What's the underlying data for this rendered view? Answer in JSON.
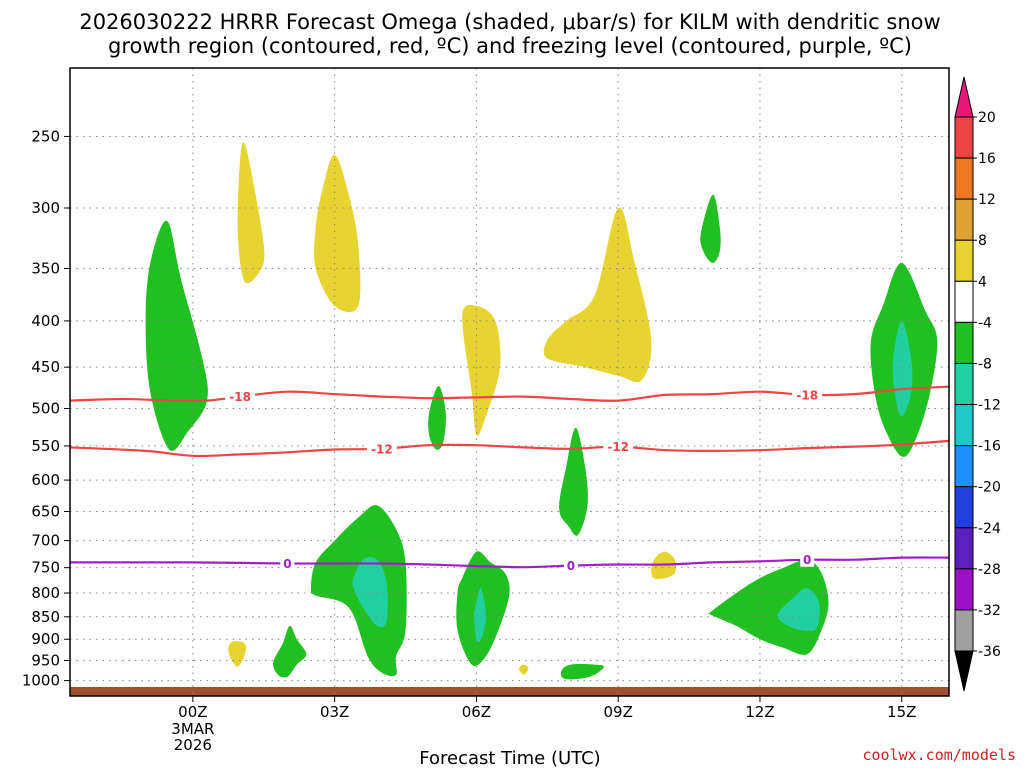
{
  "chart_data": {
    "type": "contour",
    "title_lines": [
      "2026030222 HRRR Forecast Omega (shaded, μbar/s) for KILM with dendritic snow",
      "growth region (contoured, red, ºC) and freezing level (contoured, purple, ºC)"
    ],
    "xlabel": "Forecast Time (UTC)",
    "xlim": [
      -2.6,
      16
    ],
    "ylim": [
      1040,
      210
    ],
    "x_ticks": [
      {
        "x": 0,
        "label": "00Z",
        "sub": [
          "3MAR",
          "2026"
        ]
      },
      {
        "x": 3,
        "label": "03Z",
        "sub": []
      },
      {
        "x": 6,
        "label": "06Z",
        "sub": []
      },
      {
        "x": 9,
        "label": "09Z",
        "sub": []
      },
      {
        "x": 12,
        "label": "12Z",
        "sub": []
      },
      {
        "x": 15,
        "label": "15Z",
        "sub": []
      }
    ],
    "y_ticks": [
      250,
      300,
      350,
      400,
      450,
      500,
      550,
      600,
      650,
      700,
      750,
      800,
      850,
      900,
      950,
      1000
    ],
    "y_tick_labels": [
      "250",
      "300",
      "350",
      "400",
      "450",
      "500",
      "550",
      "600",
      "650",
      "700",
      "750",
      "800",
      "850",
      "900",
      "950",
      "1000"
    ],
    "ground": {
      "color": "#a0522d",
      "label": "terrain"
    },
    "colorbar": {
      "labels": [
        "20",
        "16",
        "12",
        "8",
        "4",
        "-4",
        "-8",
        "-12",
        "-16",
        "-20",
        "-24",
        "-28",
        "-32",
        "-36"
      ],
      "colors": [
        "#ee4444",
        "#ee7722",
        "#e0a232",
        "#e8d430",
        "#ffffff",
        "#20c020",
        "#20d0a0",
        "#20c8c8",
        "#1e90ff",
        "#2040e0",
        "#5a20c0",
        "#9d10c8",
        "#a0a0a0"
      ],
      "top_arrow_color": "#e8187a",
      "bottom_arrow_color": "#000000"
    },
    "omega_regions": [
      {
        "name": "sink-0z-upper",
        "color": "#20c020",
        "pts": [
          [
            -0.5,
            555
          ],
          [
            -0.9,
            480
          ],
          [
            -1.0,
            400
          ],
          [
            -0.9,
            345
          ],
          [
            -0.55,
            310
          ],
          [
            -0.25,
            360
          ],
          [
            0.2,
            440
          ],
          [
            0.3,
            490
          ],
          [
            -0.1,
            530
          ]
        ]
      },
      {
        "name": "rise-1z-upper",
        "color": "#e8d430",
        "pts": [
          [
            1.0,
            265
          ],
          [
            1.1,
            255
          ],
          [
            1.3,
            285
          ],
          [
            1.5,
            330
          ],
          [
            1.45,
            350
          ],
          [
            1.1,
            362
          ],
          [
            0.95,
            320
          ]
        ]
      },
      {
        "name": "rise-3z-upper",
        "color": "#e8d430",
        "pts": [
          [
            2.6,
            315
          ],
          [
            2.75,
            285
          ],
          [
            3.0,
            262
          ],
          [
            3.3,
            290
          ],
          [
            3.5,
            330
          ],
          [
            3.5,
            385
          ],
          [
            3.0,
            385
          ],
          [
            2.6,
            350
          ]
        ]
      },
      {
        "name": "sink-5z-mid",
        "color": "#20c020",
        "pts": [
          [
            5.0,
            535
          ],
          [
            5.0,
            505
          ],
          [
            5.2,
            472
          ],
          [
            5.35,
            505
          ],
          [
            5.3,
            545
          ],
          [
            5.15,
            555
          ]
        ]
      },
      {
        "name": "rise-6z-mid",
        "color": "#e8d430",
        "pts": [
          [
            5.7,
            395
          ],
          [
            6.0,
            385
          ],
          [
            6.4,
            400
          ],
          [
            6.5,
            450
          ],
          [
            6.2,
            510
          ],
          [
            6.0,
            535
          ],
          [
            5.9,
            480
          ]
        ]
      },
      {
        "name": "rise-9z-mid",
        "color": "#e8d430",
        "pts": [
          [
            7.5,
            420
          ],
          [
            7.9,
            400
          ],
          [
            8.5,
            375
          ],
          [
            9.0,
            300
          ],
          [
            9.35,
            345
          ],
          [
            9.7,
            420
          ],
          [
            9.5,
            465
          ],
          [
            9.0,
            460
          ],
          [
            8.3,
            450
          ],
          [
            7.5,
            440
          ]
        ]
      },
      {
        "name": "sink-11z-upper",
        "color": "#20c020",
        "pts": [
          [
            10.75,
            320
          ],
          [
            11.0,
            290
          ],
          [
            11.15,
            315
          ],
          [
            11.15,
            335
          ],
          [
            11.0,
            345
          ],
          [
            10.8,
            335
          ]
        ]
      },
      {
        "name": "sink-15z-upper",
        "color": "#20c020",
        "pts": [
          [
            14.35,
            420
          ],
          [
            14.6,
            385
          ],
          [
            15.0,
            345
          ],
          [
            15.5,
            390
          ],
          [
            15.75,
            420
          ],
          [
            15.6,
            480
          ],
          [
            15.3,
            540
          ],
          [
            15.0,
            565
          ],
          [
            14.6,
            520
          ],
          [
            14.4,
            470
          ]
        ]
      },
      {
        "name": "sink-15z-core",
        "color": "#20d0a0",
        "pts": [
          [
            14.82,
            440
          ],
          [
            15.0,
            400
          ],
          [
            15.2,
            440
          ],
          [
            15.2,
            480
          ],
          [
            15.0,
            510
          ],
          [
            14.85,
            480
          ]
        ]
      },
      {
        "name": "sink-8z-mid",
        "color": "#20c020",
        "pts": [
          [
            7.75,
            645
          ],
          [
            7.9,
            580
          ],
          [
            8.1,
            525
          ],
          [
            8.3,
            580
          ],
          [
            8.35,
            640
          ],
          [
            8.15,
            690
          ],
          [
            7.95,
            675
          ]
        ]
      },
      {
        "name": "sink-4z-low",
        "color": "#20c020",
        "pts": [
          [
            2.5,
            790
          ],
          [
            2.6,
            740
          ],
          [
            3.0,
            700
          ],
          [
            3.5,
            660
          ],
          [
            3.9,
            640
          ],
          [
            4.3,
            680
          ],
          [
            4.5,
            740
          ],
          [
            4.5,
            880
          ],
          [
            4.3,
            940
          ],
          [
            4.3,
            985
          ],
          [
            4.0,
            980
          ],
          [
            3.7,
            940
          ],
          [
            3.3,
            830
          ],
          [
            2.6,
            805
          ]
        ]
      },
      {
        "name": "sink-4z-core",
        "color": "#20d0a0",
        "pts": [
          [
            3.4,
            770
          ],
          [
            3.6,
            735
          ],
          [
            3.9,
            735
          ],
          [
            4.1,
            780
          ],
          [
            4.1,
            860
          ],
          [
            3.9,
            870
          ],
          [
            3.6,
            830
          ],
          [
            3.4,
            790
          ]
        ]
      },
      {
        "name": "sink-6z-low",
        "color": "#20c020",
        "pts": [
          [
            5.6,
            800
          ],
          [
            5.7,
            770
          ],
          [
            6.0,
            720
          ],
          [
            6.3,
            740
          ],
          [
            6.6,
            760
          ],
          [
            6.7,
            800
          ],
          [
            6.5,
            870
          ],
          [
            6.2,
            940
          ],
          [
            5.9,
            960
          ],
          [
            5.6,
            880
          ]
        ]
      },
      {
        "name": "sink-6z-core",
        "color": "#20d0a0",
        "pts": [
          [
            5.95,
            850
          ],
          [
            6.0,
            820
          ],
          [
            6.1,
            790
          ],
          [
            6.2,
            850
          ],
          [
            6.1,
            900
          ],
          [
            6.0,
            900
          ]
        ]
      },
      {
        "name": "sink-2z-low",
        "color": "#20c020",
        "pts": [
          [
            1.7,
            955
          ],
          [
            1.9,
            910
          ],
          [
            2.05,
            870
          ],
          [
            2.2,
            900
          ],
          [
            2.4,
            935
          ],
          [
            2.2,
            960
          ],
          [
            2.0,
            990
          ],
          [
            1.8,
            985
          ]
        ]
      },
      {
        "name": "rise-1z-low",
        "color": "#e8d430",
        "pts": [
          [
            0.75,
            920
          ],
          [
            0.85,
            905
          ],
          [
            1.1,
            910
          ],
          [
            1.1,
            935
          ],
          [
            0.95,
            965
          ],
          [
            0.8,
            945
          ]
        ]
      },
      {
        "name": "rise-7z-low",
        "color": "#e8d430",
        "pts": [
          [
            6.9,
            970
          ],
          [
            7.0,
            960
          ],
          [
            7.1,
            970
          ],
          [
            7.0,
            985
          ]
        ]
      },
      {
        "name": "sink-8z-low",
        "color": "#20c020",
        "pts": [
          [
            7.8,
            975
          ],
          [
            8.0,
            960
          ],
          [
            8.5,
            960
          ],
          [
            8.7,
            965
          ],
          [
            8.5,
            985
          ],
          [
            8.2,
            995
          ],
          [
            7.85,
            995
          ]
        ]
      },
      {
        "name": "rise-10z-low",
        "color": "#e8d430",
        "pts": [
          [
            9.7,
            750
          ],
          [
            9.8,
            730
          ],
          [
            10.0,
            720
          ],
          [
            10.2,
            735
          ],
          [
            10.2,
            760
          ],
          [
            10.0,
            770
          ],
          [
            9.75,
            770
          ]
        ]
      },
      {
        "name": "sink-13z-low",
        "color": "#20c020",
        "pts": [
          [
            10.95,
            840
          ],
          [
            11.5,
            800
          ],
          [
            12.0,
            770
          ],
          [
            12.5,
            750
          ],
          [
            13.0,
            735
          ],
          [
            13.3,
            760
          ],
          [
            13.45,
            820
          ],
          [
            13.3,
            880
          ],
          [
            13.0,
            935
          ],
          [
            12.5,
            920
          ],
          [
            12.0,
            900
          ],
          [
            11.5,
            870
          ],
          [
            10.95,
            845
          ]
        ]
      },
      {
        "name": "sink-13z-core",
        "color": "#20d0a0",
        "pts": [
          [
            12.4,
            840
          ],
          [
            12.7,
            810
          ],
          [
            13.0,
            790
          ],
          [
            13.25,
            820
          ],
          [
            13.2,
            875
          ],
          [
            12.9,
            880
          ],
          [
            12.6,
            870
          ],
          [
            12.4,
            855
          ]
        ]
      }
    ],
    "contour_lines": [
      {
        "name": "minus-18",
        "label": "-18",
        "color": "#ee4444",
        "label_x": [
          1.0,
          13.0
        ],
        "pts": [
          [
            -2.6,
            490
          ],
          [
            -1.5,
            488
          ],
          [
            -0.5,
            490
          ],
          [
            0.3,
            490
          ],
          [
            1.0,
            485
          ],
          [
            2.0,
            479
          ],
          [
            3.0,
            482
          ],
          [
            4.0,
            485
          ],
          [
            5.0,
            487
          ],
          [
            6.0,
            486
          ],
          [
            7.0,
            485
          ],
          [
            8.0,
            488
          ],
          [
            9.0,
            490
          ],
          [
            10.0,
            483
          ],
          [
            11.0,
            482
          ],
          [
            12.0,
            479
          ],
          [
            13.0,
            483
          ],
          [
            14.0,
            482
          ],
          [
            15.0,
            476
          ],
          [
            16.0,
            473
          ]
        ]
      },
      {
        "name": "minus-12",
        "label": "-12",
        "color": "#ee4444",
        "label_x": [
          4.0,
          9.0
        ],
        "pts": [
          [
            -2.6,
            552
          ],
          [
            -1.0,
            557
          ],
          [
            0.0,
            564
          ],
          [
            1.0,
            562
          ],
          [
            2.0,
            559
          ],
          [
            3.0,
            555
          ],
          [
            4.0,
            554
          ],
          [
            5.0,
            549
          ],
          [
            6.0,
            549
          ],
          [
            7.0,
            552
          ],
          [
            8.0,
            554
          ],
          [
            9.0,
            551
          ],
          [
            10.0,
            556
          ],
          [
            11.0,
            557
          ],
          [
            12.0,
            556
          ],
          [
            13.0,
            553
          ],
          [
            14.0,
            551
          ],
          [
            15.0,
            548
          ],
          [
            16.0,
            543
          ]
        ]
      },
      {
        "name": "freezing-level",
        "label": "0",
        "color": "#a020c8",
        "label_x": [
          2.0,
          8.0,
          13.0
        ],
        "pts": [
          [
            -2.6,
            740
          ],
          [
            -1.0,
            740
          ],
          [
            0.0,
            740
          ],
          [
            1.0,
            741
          ],
          [
            2.0,
            742
          ],
          [
            3.0,
            742
          ],
          [
            4.0,
            742
          ],
          [
            5.0,
            744
          ],
          [
            6.0,
            747
          ],
          [
            7.0,
            749
          ],
          [
            8.0,
            746
          ],
          [
            9.0,
            744
          ],
          [
            10.0,
            744
          ],
          [
            11.0,
            740
          ],
          [
            12.0,
            738
          ],
          [
            13.0,
            735
          ],
          [
            14.0,
            735
          ],
          [
            15.0,
            731
          ],
          [
            16.0,
            731
          ]
        ]
      }
    ]
  },
  "credit": "coolwx.com/models"
}
